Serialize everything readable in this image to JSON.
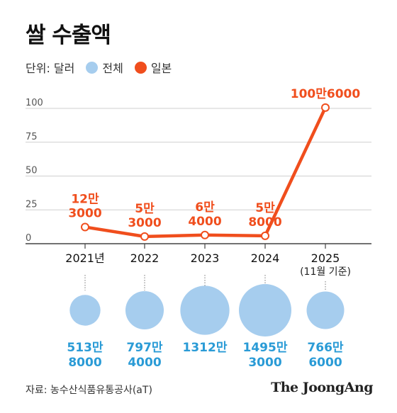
{
  "title": "쌀 수출액",
  "legend": {
    "unit_label": "단위: 달러",
    "total_label": "전체",
    "japan_label": "일본",
    "total_color": "#a6cdee",
    "japan_color": "#f04e1d"
  },
  "source": "자료: 농수산식품유통공사(aT)",
  "brand": "The JoongAng",
  "chart_data": {
    "type": "line",
    "categories": [
      "2021년",
      "2022",
      "2023",
      "2024",
      "2025"
    ],
    "category_notes": [
      "",
      "",
      "",
      "",
      "(11월 기준)"
    ],
    "y_ticks": [
      "0",
      "25",
      "50",
      "75",
      "100"
    ],
    "ylim": [
      0,
      100
    ],
    "series": [
      {
        "name": "일본",
        "values": [
          12.3,
          5.3,
          6.4,
          5.8,
          100.6
        ],
        "value_labels": [
          [
            "12만",
            "3000"
          ],
          [
            "5만",
            "3000"
          ],
          [
            "6만",
            "4000"
          ],
          [
            "5만",
            "8000"
          ],
          [
            "100만6000"
          ]
        ]
      },
      {
        "name": "전체",
        "values": [
          513.8,
          797.4,
          1312,
          1495.3,
          766.6
        ],
        "value_labels": [
          [
            "513만",
            "8000"
          ],
          [
            "797만",
            "4000"
          ],
          [
            "1312만"
          ],
          [
            "1495만",
            "3000"
          ],
          [
            "766만",
            "6000"
          ]
        ]
      }
    ]
  }
}
